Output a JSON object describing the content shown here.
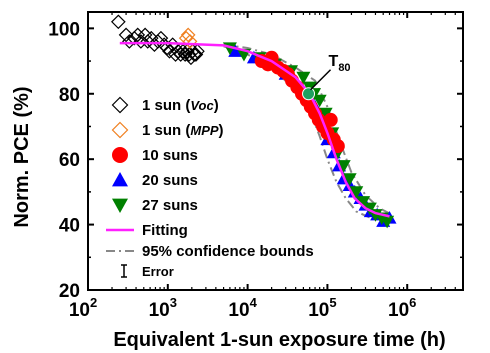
{
  "chart_data": {
    "type": "scatter",
    "title": "",
    "xlabel": "Equivalent 1-sun exposure time (h)",
    "ylabel": "Norm. PCE (%)",
    "x_scale": "log",
    "xlim": [
      100,
      5000000
    ],
    "ylim": [
      20,
      105
    ],
    "x_ticks": [
      {
        "value": 100,
        "base": "10",
        "exp": "2"
      },
      {
        "value": 1000,
        "base": "10",
        "exp": "3"
      },
      {
        "value": 10000,
        "base": "10",
        "exp": "4"
      },
      {
        "value": 100000,
        "base": "10",
        "exp": "5"
      },
      {
        "value": 1000000,
        "base": "10",
        "exp": "6"
      }
    ],
    "y_ticks": [
      20,
      40,
      60,
      80,
      100
    ],
    "grid": false,
    "legend_position": "left",
    "series": [
      {
        "name": "1 sun",
        "name_suffix": "Voc",
        "marker": "diamond-open",
        "color": "#000000",
        "points": [
          [
            240,
            102
          ],
          [
            300,
            98
          ],
          [
            330,
            96
          ],
          [
            380,
            97
          ],
          [
            420,
            98
          ],
          [
            460,
            96
          ],
          [
            520,
            98
          ],
          [
            560,
            96
          ],
          [
            620,
            97
          ],
          [
            680,
            95
          ],
          [
            750,
            96
          ],
          [
            820,
            97
          ],
          [
            900,
            95
          ],
          [
            980,
            94
          ],
          [
            1050,
            93
          ],
          [
            1150,
            95
          ],
          [
            1250,
            92
          ],
          [
            1350,
            93
          ],
          [
            1450,
            92
          ],
          [
            1550,
            93
          ],
          [
            1650,
            92
          ],
          [
            1750,
            93
          ],
          [
            1850,
            92
          ],
          [
            1950,
            91
          ],
          [
            2050,
            93
          ],
          [
            2150,
            92
          ],
          [
            2250,
            92
          ],
          [
            2350,
            93
          ]
        ]
      },
      {
        "name": "1 sun",
        "name_suffix": "MPP",
        "marker": "diamond-open",
        "color": "#f08020",
        "points": [
          [
            1700,
            97
          ],
          [
            1800,
            98
          ],
          [
            1900,
            96
          ]
        ]
      },
      {
        "name": "10 suns",
        "marker": "circle",
        "color": "#ff0000",
        "points": [
          [
            15000,
            90
          ],
          [
            18000,
            89
          ],
          [
            20000,
            91
          ],
          [
            24000,
            88
          ],
          [
            28000,
            87
          ],
          [
            32000,
            86
          ],
          [
            36000,
            84
          ],
          [
            42000,
            82
          ],
          [
            48000,
            80
          ],
          [
            55000,
            78
          ],
          [
            62000,
            76
          ],
          [
            70000,
            74
          ],
          [
            78000,
            72
          ],
          [
            88000,
            70
          ],
          [
            100000,
            68
          ],
          [
            110000,
            72
          ],
          [
            120000,
            66
          ],
          [
            135000,
            64
          ]
        ]
      },
      {
        "name": "20 suns",
        "marker": "triangle",
        "color": "#0000ff",
        "points": [
          [
            7000,
            93
          ],
          [
            12000,
            91
          ],
          [
            20000,
            89
          ],
          [
            30000,
            86
          ],
          [
            45000,
            82
          ],
          [
            60000,
            80
          ],
          [
            70000,
            76
          ],
          [
            85000,
            72
          ],
          [
            100000,
            66
          ],
          [
            120000,
            62
          ],
          [
            140000,
            58
          ],
          [
            160000,
            54
          ],
          [
            190000,
            52
          ],
          [
            220000,
            50
          ],
          [
            260000,
            48
          ],
          [
            300000,
            46
          ],
          [
            350000,
            44
          ],
          [
            420000,
            43
          ],
          [
            500000,
            41
          ],
          [
            600000,
            42
          ]
        ]
      },
      {
        "name": "27 suns",
        "marker": "triangle-down",
        "color": "#008000",
        "points": [
          [
            6000,
            94
          ],
          [
            9000,
            92
          ],
          [
            14000,
            91
          ],
          [
            22000,
            89
          ],
          [
            35000,
            87
          ],
          [
            50000,
            85
          ],
          [
            60000,
            82
          ],
          [
            68000,
            80
          ],
          [
            80000,
            78
          ],
          [
            95000,
            74
          ],
          [
            115000,
            68
          ],
          [
            135000,
            62
          ],
          [
            160000,
            58
          ],
          [
            190000,
            54
          ],
          [
            230000,
            50
          ],
          [
            280000,
            47
          ],
          [
            340000,
            45
          ],
          [
            400000,
            43
          ],
          [
            480000,
            42
          ],
          [
            560000,
            41
          ]
        ]
      }
    ],
    "fit": {
      "name": "Fitting",
      "color": "#ff20ff",
      "points": [
        [
          250,
          95.5
        ],
        [
          1000,
          95.5
        ],
        [
          5000,
          94.8
        ],
        [
          10000,
          93
        ],
        [
          20000,
          90
        ],
        [
          40000,
          85
        ],
        [
          60000,
          80
        ],
        [
          80000,
          74
        ],
        [
          100000,
          68
        ],
        [
          130000,
          60
        ],
        [
          170000,
          53
        ],
        [
          220000,
          48
        ],
        [
          300000,
          45
        ],
        [
          400000,
          43.5
        ],
        [
          600000,
          42.5
        ]
      ]
    },
    "confidence": {
      "name": "95% confidence bounds",
      "color": "#888888",
      "upper": [
        [
          5000,
          95
        ],
        [
          10000,
          94
        ],
        [
          20000,
          92
        ],
        [
          40000,
          88
        ],
        [
          70000,
          84
        ],
        [
          100000,
          76
        ],
        [
          150000,
          64
        ],
        [
          200000,
          56
        ],
        [
          300000,
          49
        ],
        [
          450000,
          45
        ],
        [
          650000,
          43
        ]
      ],
      "lower": [
        [
          5000,
          94.5
        ],
        [
          10000,
          92
        ],
        [
          20000,
          88
        ],
        [
          40000,
          81
        ],
        [
          60000,
          75
        ],
        [
          80000,
          67
        ],
        [
          100000,
          60
        ],
        [
          130000,
          53
        ],
        [
          170000,
          48
        ],
        [
          230000,
          44
        ],
        [
          350000,
          42
        ],
        [
          550000,
          41
        ]
      ]
    },
    "error_label": "Error",
    "annotations": [
      {
        "label_main": "T",
        "label_sub": "80",
        "x": 58000,
        "y": 80,
        "marker_color": "#20a060"
      }
    ]
  }
}
